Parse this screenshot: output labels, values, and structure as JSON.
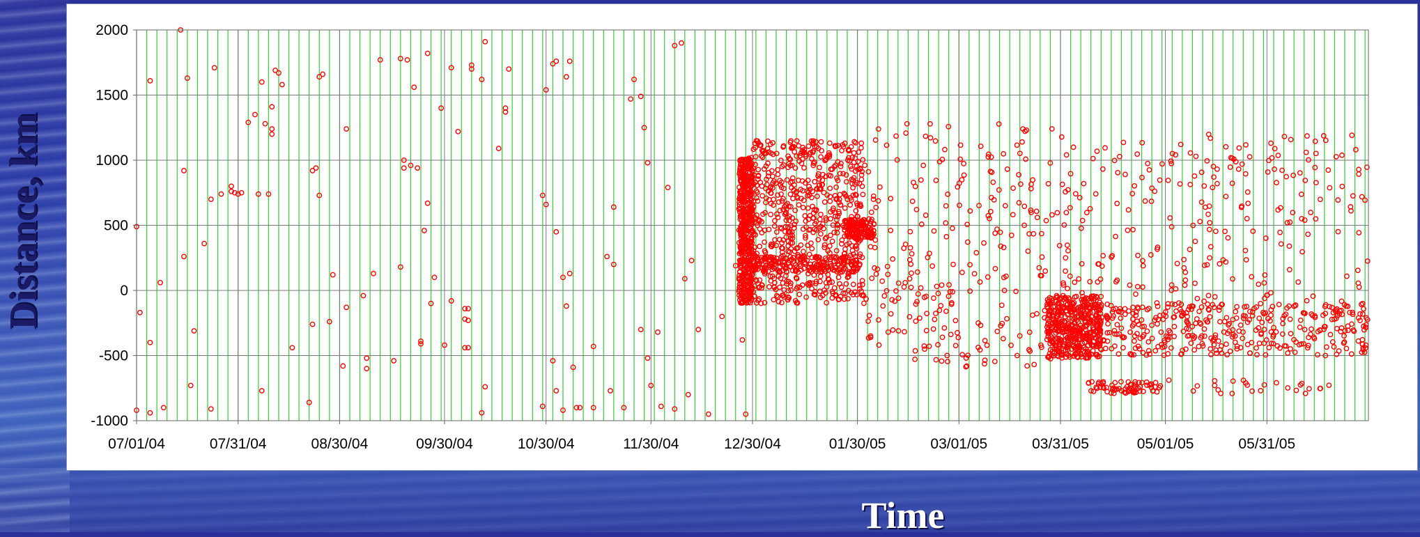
{
  "chart_data": {
    "type": "scatter",
    "title": "",
    "xlabel": "Time",
    "ylabel": "Distance, km",
    "x_type": "date",
    "xlim": [
      "2004-07-01",
      "2005-06-30"
    ],
    "ylim": [
      -1000,
      2000
    ],
    "x_ticks": [
      "2004-07-01",
      "2004-07-31",
      "2004-08-30",
      "2004-09-30",
      "2004-10-30",
      "2004-11-30",
      "2004-12-30",
      "2005-01-30",
      "2005-03-01",
      "2005-03-31",
      "2005-05-01",
      "2005-05-31"
    ],
    "x_tick_labels": [
      "07/01/04",
      "07/31/04",
      "08/30/04",
      "09/30/04",
      "10/30/04",
      "11/30/04",
      "12/30/04",
      "01/30/05",
      "03/01/05",
      "03/31/05",
      "05/01/05",
      "05/31/05"
    ],
    "y_ticks": [
      2000,
      1500,
      1000,
      500,
      0,
      -500,
      -1000
    ],
    "y_tick_labels": [
      "2000",
      "1500",
      "1000",
      "500",
      "0",
      "-500",
      "-1000"
    ],
    "grid": true,
    "grid_minor_interval_days": 3,
    "legend": "none",
    "marker": "open-circle",
    "colors": {
      "marker": "#ff0000",
      "minor_grid": "#33cc33",
      "major_grid": "#777777",
      "axes": "#666666",
      "tick_text": "#000000"
    },
    "points_sparse": [
      {
        "x": "2004-07-01",
        "y": -920
      },
      {
        "x": "2004-07-01",
        "y": 490
      },
      {
        "x": "2004-07-02",
        "y": -170
      },
      {
        "x": "2004-07-05",
        "y": -940
      },
      {
        "x": "2004-07-05",
        "y": -400
      },
      {
        "x": "2004-07-05",
        "y": 1610
      },
      {
        "x": "2004-07-08",
        "y": 60
      },
      {
        "x": "2004-07-09",
        "y": -900
      },
      {
        "x": "2004-07-14",
        "y": 2000
      },
      {
        "x": "2004-07-15",
        "y": 260
      },
      {
        "x": "2004-07-15",
        "y": 920
      },
      {
        "x": "2004-07-16",
        "y": 1630
      },
      {
        "x": "2004-07-17",
        "y": -730
      },
      {
        "x": "2004-07-18",
        "y": -310
      },
      {
        "x": "2004-07-21",
        "y": 360
      },
      {
        "x": "2004-07-23",
        "y": -910
      },
      {
        "x": "2004-07-23",
        "y": 700
      },
      {
        "x": "2004-07-24",
        "y": 1710
      },
      {
        "x": "2004-07-26",
        "y": 740
      },
      {
        "x": "2004-07-29",
        "y": 760
      },
      {
        "x": "2004-07-29",
        "y": 800
      },
      {
        "x": "2004-07-30",
        "y": 750
      },
      {
        "x": "2004-07-31",
        "y": 740
      },
      {
        "x": "2004-08-01",
        "y": 750
      },
      {
        "x": "2004-08-03",
        "y": 1290
      },
      {
        "x": "2004-08-05",
        "y": 1350
      },
      {
        "x": "2004-08-06",
        "y": 740
      },
      {
        "x": "2004-08-07",
        "y": -770
      },
      {
        "x": "2004-08-07",
        "y": 1600
      },
      {
        "x": "2004-08-08",
        "y": 1280
      },
      {
        "x": "2004-08-09",
        "y": 740
      },
      {
        "x": "2004-08-10",
        "y": 1200
      },
      {
        "x": "2004-08-10",
        "y": 1240
      },
      {
        "x": "2004-08-10",
        "y": 1410
      },
      {
        "x": "2004-08-11",
        "y": 1690
      },
      {
        "x": "2004-08-12",
        "y": 1670
      },
      {
        "x": "2004-08-13",
        "y": 1580
      },
      {
        "x": "2004-08-16",
        "y": -440
      },
      {
        "x": "2004-08-21",
        "y": -860
      },
      {
        "x": "2004-08-22",
        "y": -260
      },
      {
        "x": "2004-08-22",
        "y": 920
      },
      {
        "x": "2004-08-23",
        "y": 940
      },
      {
        "x": "2004-08-24",
        "y": 730
      },
      {
        "x": "2004-08-24",
        "y": 1640
      },
      {
        "x": "2004-08-25",
        "y": 1660
      },
      {
        "x": "2004-08-27",
        "y": -240
      },
      {
        "x": "2004-08-28",
        "y": 120
      },
      {
        "x": "2004-08-31",
        "y": -580
      },
      {
        "x": "2004-09-01",
        "y": -130
      },
      {
        "x": "2004-09-01",
        "y": 1240
      },
      {
        "x": "2004-09-06",
        "y": -40
      },
      {
        "x": "2004-09-07",
        "y": -520
      },
      {
        "x": "2004-09-07",
        "y": -600
      },
      {
        "x": "2004-09-09",
        "y": 130
      },
      {
        "x": "2004-09-11",
        "y": 1770
      },
      {
        "x": "2004-09-15",
        "y": -540
      },
      {
        "x": "2004-09-17",
        "y": 180
      },
      {
        "x": "2004-09-17",
        "y": 1780
      },
      {
        "x": "2004-09-18",
        "y": 940
      },
      {
        "x": "2004-09-18",
        "y": 1000
      },
      {
        "x": "2004-09-19",
        "y": 1770
      },
      {
        "x": "2004-09-20",
        "y": 960
      },
      {
        "x": "2004-09-21",
        "y": 1560
      },
      {
        "x": "2004-09-22",
        "y": 940
      },
      {
        "x": "2004-09-23",
        "y": -390
      },
      {
        "x": "2004-09-23",
        "y": -410
      },
      {
        "x": "2004-09-24",
        "y": 460
      },
      {
        "x": "2004-09-25",
        "y": 670
      },
      {
        "x": "2004-09-25",
        "y": 1820
      },
      {
        "x": "2004-09-26",
        "y": -100
      },
      {
        "x": "2004-09-27",
        "y": 100
      },
      {
        "x": "2004-09-29",
        "y": 1400
      },
      {
        "x": "2004-09-30",
        "y": -420
      },
      {
        "x": "2004-10-02",
        "y": -80
      },
      {
        "x": "2004-10-02",
        "y": 1710
      },
      {
        "x": "2004-10-04",
        "y": 1220
      },
      {
        "x": "2004-10-06",
        "y": -140
      },
      {
        "x": "2004-10-06",
        "y": -220
      },
      {
        "x": "2004-10-06",
        "y": -440
      },
      {
        "x": "2004-10-07",
        "y": -140
      },
      {
        "x": "2004-10-07",
        "y": -440
      },
      {
        "x": "2004-10-07",
        "y": -230
      },
      {
        "x": "2004-10-08",
        "y": 1700
      },
      {
        "x": "2004-10-08",
        "y": 1730
      },
      {
        "x": "2004-10-11",
        "y": -940
      },
      {
        "x": "2004-10-11",
        "y": 1620
      },
      {
        "x": "2004-10-12",
        "y": -740
      },
      {
        "x": "2004-10-12",
        "y": 1910
      },
      {
        "x": "2004-10-16",
        "y": 1090
      },
      {
        "x": "2004-10-18",
        "y": 1400
      },
      {
        "x": "2004-10-18",
        "y": 1370
      },
      {
        "x": "2004-10-19",
        "y": 1700
      },
      {
        "x": "2004-10-29",
        "y": -890
      },
      {
        "x": "2004-10-29",
        "y": 730
      },
      {
        "x": "2004-10-30",
        "y": 660
      },
      {
        "x": "2004-10-30",
        "y": 1540
      },
      {
        "x": "2004-11-01",
        "y": -540
      },
      {
        "x": "2004-11-01",
        "y": 1740
      },
      {
        "x": "2004-11-02",
        "y": -770
      },
      {
        "x": "2004-11-02",
        "y": 450
      },
      {
        "x": "2004-11-02",
        "y": 1760
      },
      {
        "x": "2004-11-04",
        "y": -920
      },
      {
        "x": "2004-11-04",
        "y": 100
      },
      {
        "x": "2004-11-05",
        "y": -120
      },
      {
        "x": "2004-11-05",
        "y": 1640
      },
      {
        "x": "2004-11-06",
        "y": 130
      },
      {
        "x": "2004-11-06",
        "y": 1760
      },
      {
        "x": "2004-11-07",
        "y": -590
      },
      {
        "x": "2004-11-08",
        "y": -900
      },
      {
        "x": "2004-11-09",
        "y": -900
      },
      {
        "x": "2004-11-13",
        "y": -900
      },
      {
        "x": "2004-11-13",
        "y": -430
      },
      {
        "x": "2004-11-17",
        "y": 260
      },
      {
        "x": "2004-11-18",
        "y": -770
      },
      {
        "x": "2004-11-19",
        "y": 640
      },
      {
        "x": "2004-11-19",
        "y": 200
      },
      {
        "x": "2004-11-22",
        "y": -900
      },
      {
        "x": "2004-11-24",
        "y": 1470
      },
      {
        "x": "2004-11-25",
        "y": 1620
      },
      {
        "x": "2004-11-27",
        "y": -300
      },
      {
        "x": "2004-11-27",
        "y": 1490
      },
      {
        "x": "2004-11-28",
        "y": 1250
      },
      {
        "x": "2004-11-29",
        "y": -520
      },
      {
        "x": "2004-11-29",
        "y": 980
      },
      {
        "x": "2004-11-30",
        "y": -730
      },
      {
        "x": "2004-12-02",
        "y": -320
      },
      {
        "x": "2004-12-03",
        "y": -890
      },
      {
        "x": "2004-12-05",
        "y": 790
      },
      {
        "x": "2004-12-07",
        "y": -910
      },
      {
        "x": "2004-12-07",
        "y": 1880
      },
      {
        "x": "2004-12-09",
        "y": 1900
      },
      {
        "x": "2004-12-10",
        "y": 90
      },
      {
        "x": "2004-12-11",
        "y": -800
      },
      {
        "x": "2004-12-12",
        "y": 230
      },
      {
        "x": "2004-12-14",
        "y": -300
      },
      {
        "x": "2004-12-17",
        "y": -950
      },
      {
        "x": "2004-12-21",
        "y": -200
      },
      {
        "x": "2004-12-25",
        "y": 190
      },
      {
        "x": "2004-12-27",
        "y": -380
      },
      {
        "x": "2004-12-28",
        "y": -950
      }
    ],
    "clusters": [
      {
        "x_range": [
          "2004-12-26",
          "2004-12-30"
        ],
        "y_range": [
          -100,
          1020
        ],
        "points": 500
      },
      {
        "x_range": [
          "2004-12-30",
          "2005-02-01"
        ],
        "y_range": [
          -100,
          1150
        ],
        "points": 700
      },
      {
        "x_range": [
          "2004-12-30",
          "2005-01-31"
        ],
        "y_range": [
          140,
          260
        ],
        "points": 160
      },
      {
        "x_range": [
          "2005-01-26",
          "2005-02-04"
        ],
        "y_range": [
          400,
          550
        ],
        "points": 120
      },
      {
        "x_range": [
          "2005-02-01",
          "2005-03-31"
        ],
        "y_range": [
          -600,
          1300
        ],
        "points": 260
      },
      {
        "x_range": [
          "2005-03-27",
          "2005-04-12"
        ],
        "y_range": [
          -520,
          -40
        ],
        "points": 480
      },
      {
        "x_range": [
          "2005-04-12",
          "2005-06-30"
        ],
        "y_range": [
          -500,
          -100
        ],
        "points": 360
      },
      {
        "x_range": [
          "2005-03-31",
          "2005-06-30"
        ],
        "y_range": [
          -200,
          1200
        ],
        "points": 260
      },
      {
        "x_range": [
          "2005-04-08",
          "2005-04-30"
        ],
        "y_range": [
          -790,
          -700
        ],
        "points": 70
      },
      {
        "x_range": [
          "2005-04-29",
          "2005-06-20"
        ],
        "y_range": [
          -800,
          -680
        ],
        "points": 25
      }
    ]
  }
}
